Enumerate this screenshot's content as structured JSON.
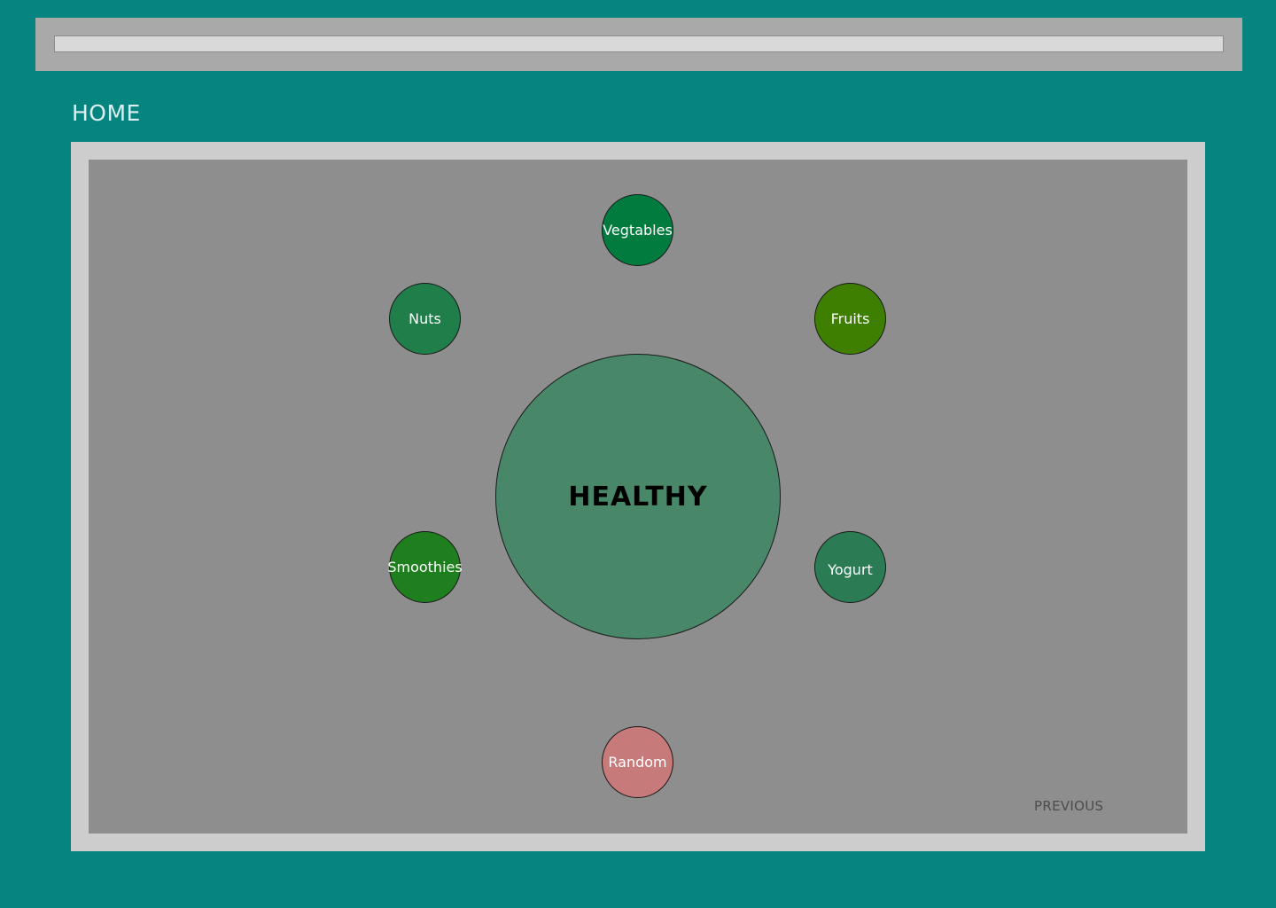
{
  "header": {
    "search_value": ""
  },
  "page": {
    "title": "HOME"
  },
  "main": {
    "center_label": "HEALTHY",
    "categories": [
      {
        "label": "Vegtables",
        "color": "#027b3f"
      },
      {
        "label": "Nuts",
        "color": "#1f7e4a"
      },
      {
        "label": "Fruits",
        "color": "#3e7f01"
      },
      {
        "label": "Smoothies",
        "color": "#1f7e1d"
      },
      {
        "label": "Yogurt",
        "color": "#2b7c55"
      },
      {
        "label": "Random",
        "color": "#c77a7a"
      }
    ],
    "previous_label": "PREVIOUS"
  },
  "colors": {
    "background": "#068480",
    "center": "#498769"
  }
}
